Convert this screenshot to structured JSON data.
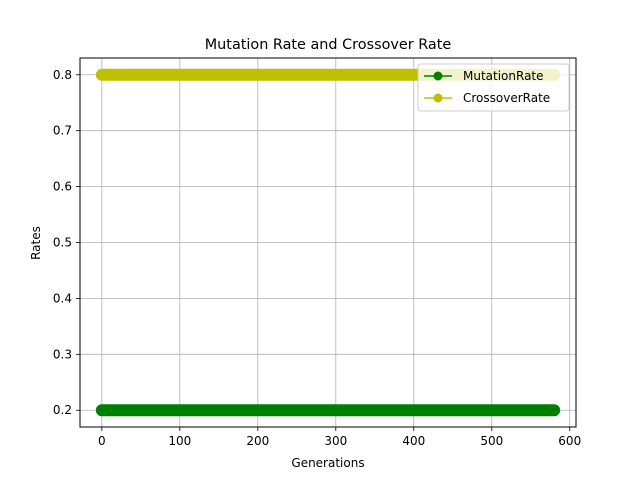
{
  "chart_data": {
    "type": "line",
    "title": "Mutation Rate and Crossover Rate",
    "xlabel": "Generations",
    "ylabel": "Rates",
    "xlim": [
      -28,
      608
    ],
    "ylim": [
      0.17,
      0.83
    ],
    "x_ticks": [
      0,
      100,
      200,
      300,
      400,
      500,
      600
    ],
    "y_ticks": [
      0.2,
      0.3,
      0.4,
      0.5,
      0.6,
      0.7,
      0.8
    ],
    "grid": true,
    "legend_position": "top-right",
    "x_range": [
      0,
      580
    ],
    "series": [
      {
        "name": "MutationRate",
        "color": "#008000",
        "marker": "circle",
        "value": 0.2,
        "x_start": 0,
        "x_end": 580
      },
      {
        "name": "CrossoverRate",
        "color": "#bfbf00",
        "marker": "circle",
        "value": 0.8,
        "x_start": 0,
        "x_end": 580
      }
    ]
  }
}
